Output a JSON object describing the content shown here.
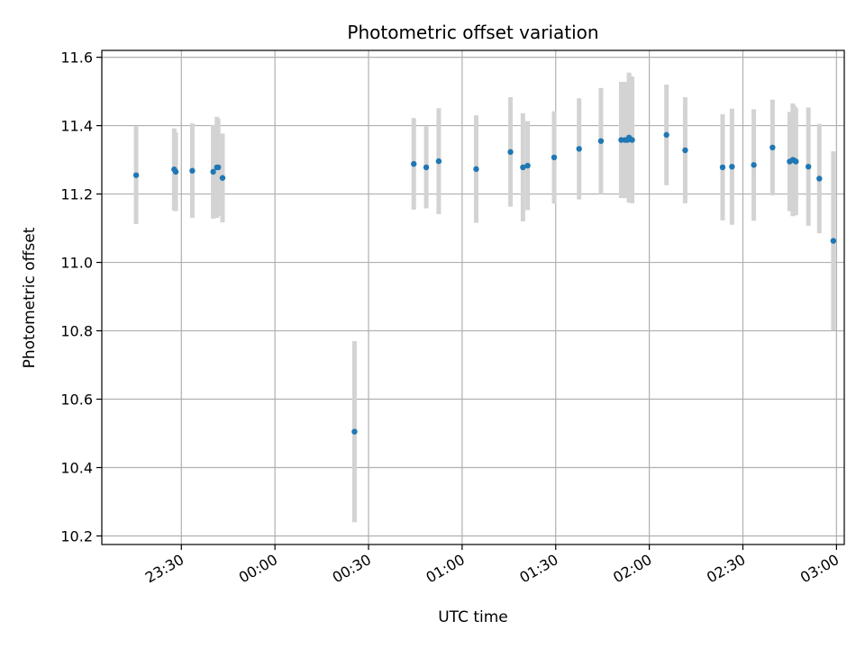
{
  "chart_data": {
    "type": "scatter",
    "title": "Photometric offset variation",
    "xlabel": "UTC time",
    "ylabel": "Photometric offset",
    "x_tick_labels": [
      "23:30",
      "00:00",
      "00:30",
      "01:00",
      "01:30",
      "02:00",
      "02:30",
      "03:00"
    ],
    "x_tick_minutes": [
      -30,
      0,
      30,
      60,
      90,
      120,
      150,
      180
    ],
    "xlim_minutes": [
      -55.5,
      182.5
    ],
    "y_ticks": [
      "10.2",
      "10.4",
      "10.6",
      "10.8",
      "11.0",
      "11.2",
      "11.4",
      "11.6"
    ],
    "ylim": [
      10.175,
      11.62
    ],
    "grid": true,
    "colors": {
      "point": "#1f77b4",
      "errorbar": "#d3d3d3",
      "grid": "#b0b0b0"
    },
    "series": [
      {
        "x_minutes": [
          -44.5,
          -32.3,
          -31.8,
          -26.5,
          -19.8,
          -18.6,
          -18.2,
          -16.8,
          25.5,
          44.5,
          48.5,
          52.5,
          64.5,
          75.5,
          79.5,
          81.0,
          89.5,
          97.5,
          104.5,
          111.0,
          112.2,
          113.0,
          113.5,
          114.0,
          114.5,
          125.5,
          131.5,
          143.5,
          146.5,
          153.5,
          159.5,
          165.0,
          166.0,
          166.5,
          167.0,
          171.0,
          174.5,
          179.0
        ],
        "y": [
          11.255,
          11.272,
          11.265,
          11.268,
          11.265,
          11.278,
          11.278,
          11.247,
          10.505,
          11.288,
          11.278,
          11.296,
          11.273,
          11.323,
          11.278,
          11.283,
          11.307,
          11.332,
          11.355,
          11.358,
          11.358,
          11.358,
          11.365,
          11.36,
          11.358,
          11.373,
          11.328,
          11.278,
          11.28,
          11.285,
          11.336,
          11.295,
          11.3,
          11.298,
          11.295,
          11.28,
          11.245,
          11.063
        ],
        "err": [
          0.143,
          0.12,
          0.115,
          0.138,
          0.137,
          0.148,
          0.142,
          0.13,
          0.265,
          0.134,
          0.12,
          0.155,
          0.157,
          0.16,
          0.158,
          0.13,
          0.135,
          0.148,
          0.155,
          0.17,
          0.17,
          0.165,
          0.19,
          0.185,
          0.185,
          0.147,
          0.155,
          0.155,
          0.17,
          0.163,
          0.14,
          0.145,
          0.165,
          0.16,
          0.157,
          0.173,
          0.16,
          0.262
        ]
      }
    ]
  }
}
